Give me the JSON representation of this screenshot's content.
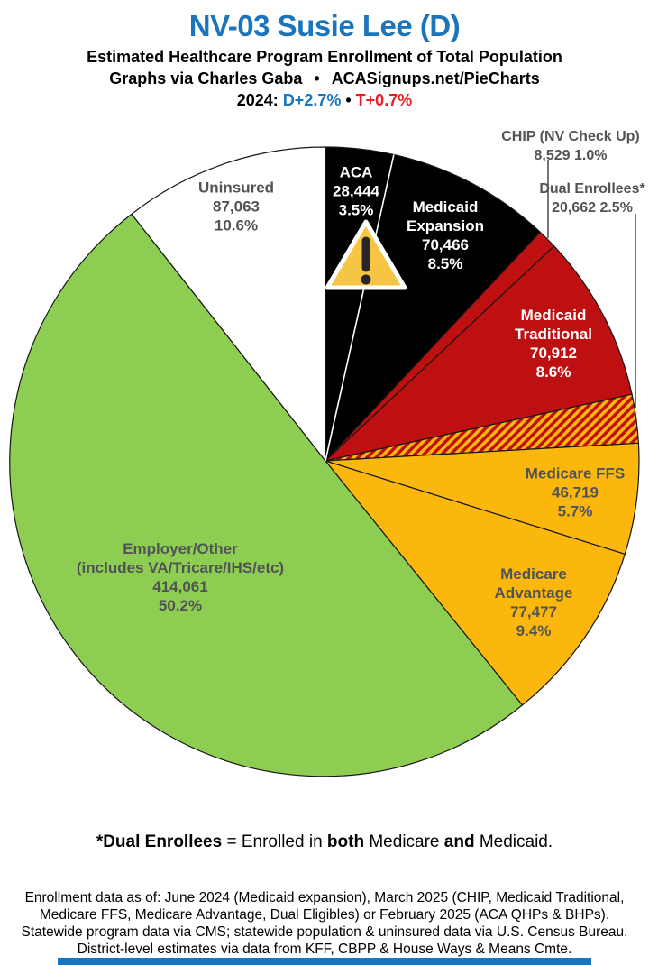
{
  "header": {
    "title": "NV-03 Susie Lee (D)",
    "subtitle": "Estimated Healthcare Program Enrollment of Total Population",
    "credit": {
      "left": "Graphs via Charles Gaba",
      "bullet": "•",
      "right": "ACASignups.net/PieCharts"
    },
    "partisan_segments": [
      {
        "text": "2024: ",
        "color": "#000000",
        "bold": true
      },
      {
        "text": "D+2.7%",
        "color": "#1B75BC",
        "bold": true
      },
      {
        "text": " • ",
        "color": "#000000",
        "bold": true
      },
      {
        "text": "T+0.7%",
        "color": "#ED1C24",
        "bold": true
      }
    ]
  },
  "chart_data": {
    "type": "pie",
    "title": "Estimated Healthcare Program Enrollment of Total Population",
    "start_angle_deg": 0,
    "direction": "clockwise",
    "slices": [
      {
        "id": "aca",
        "name": "ACA",
        "value": 28444,
        "value_display": "28,444",
        "pct": 3.5,
        "color": "#000000",
        "label_color": "white"
      },
      {
        "id": "medicaid-expansion",
        "name": "Medicaid Expansion",
        "value": 70466,
        "value_display": "70,466",
        "pct": 8.5,
        "color": "#000000",
        "label_color": "white"
      },
      {
        "id": "chip",
        "name": "CHIP (NV Check Up)",
        "value": 8529,
        "value_display": "8,529",
        "pct": 1.0,
        "color": "#BE1010",
        "label_color": "gray"
      },
      {
        "id": "medicaid-traditional",
        "name": "Medicaid Traditional",
        "value": 70912,
        "value_display": "70,912",
        "pct": 8.6,
        "color": "#BE1010",
        "label_color": "white"
      },
      {
        "id": "dual-enrollees",
        "name": "Dual Enrollees*",
        "value": 20662,
        "value_display": "20,662",
        "pct": 2.5,
        "color": "#BE1010",
        "pattern": "diagonal-red-yellow",
        "pattern_colors": [
          "#BE1010",
          "#FBB70B"
        ],
        "label_color": "gray"
      },
      {
        "id": "medicare-ffs",
        "name": "Medicare FFS",
        "value": 46719,
        "value_display": "46,719",
        "pct": 5.7,
        "color": "#FBB70B",
        "label_color": "gray"
      },
      {
        "id": "medicare-advantage",
        "name": "Medicare Advantage",
        "value": 77477,
        "value_display": "77,477",
        "pct": 9.4,
        "color": "#FBB70B",
        "label_color": "gray"
      },
      {
        "id": "employer-other",
        "name": "Employer/Other (includes VA/Tricare/IHS/etc)",
        "value": 414061,
        "value_display": "414,061",
        "pct": 50.2,
        "color": "#8DCE52",
        "label_color": "gray"
      },
      {
        "id": "uninsured",
        "name": "Uninsured",
        "value": 87063,
        "value_display": "87,063",
        "pct": 10.6,
        "color": "#FFFFFF",
        "label_color": "gray"
      }
    ],
    "legend": "none",
    "annotations": [
      "warning icon on ACA slice"
    ]
  },
  "labels": {
    "uninsured": {
      "lines": [
        "Uninsured",
        "87,063",
        "10.6%"
      ]
    },
    "aca": {
      "lines": [
        "ACA",
        "28,444",
        "3.5%"
      ]
    },
    "medicaid_expansion": {
      "lines": [
        "Medicaid",
        "Expansion",
        "70,466",
        "8.5%"
      ]
    },
    "chip": {
      "lines": [
        "CHIP (NV Check Up)",
        "8,529 1.0%"
      ]
    },
    "dual": {
      "lines": [
        "Dual Enrollees*",
        "20,662 2.5%"
      ]
    },
    "medicaid_traditional": {
      "lines": [
        "Medicaid",
        "Traditional",
        "70,912",
        "8.6%"
      ]
    },
    "medicare_ffs": {
      "lines": [
        "Medicare FFS",
        "46,719",
        "5.7%"
      ]
    },
    "medicare_advantage": {
      "lines": [
        "Medicare",
        "Advantage",
        "77,477",
        "9.4%"
      ]
    },
    "employer": {
      "lines": [
        "Employer/Other",
        "(includes VA/Tricare/IHS/etc)",
        "414,061",
        "50.2%"
      ]
    }
  },
  "footnote_segments": [
    {
      "text": "*Dual Enrollees",
      "bold": true
    },
    {
      "text": " = Enrolled in ",
      "bold": false
    },
    {
      "text": "both",
      "bold": true
    },
    {
      "text": " Medicare ",
      "bold": false
    },
    {
      "text": "and",
      "bold": true
    },
    {
      "text": " Medicaid.",
      "bold": false
    }
  ],
  "footer_lines": [
    "Enrollment data as of: June 2024 (Medicaid expansion), March 2025 (CHIP, Medicaid Traditional,",
    "Medicare FFS, Medicare Advantage, Dual Eligibles) or February 2025 (ACA QHPs & BHPs).",
    "Statewide program data via CMS; statewide population & uninsured data via U.S. Census Bureau.",
    "District-level estimates via data from KFF, CBPP & House Ways & Means Cmte."
  ],
  "colors": {
    "accent_blue": "#1B75BC",
    "accent_red": "#ED1C24",
    "pie_black": "#000000",
    "pie_red": "#BE1010",
    "pie_gold": "#FBB70B",
    "pie_green": "#8DCE52",
    "pie_white": "#FFFFFF",
    "label_gray": "#515356",
    "warning_yellow": "#F7C544"
  }
}
